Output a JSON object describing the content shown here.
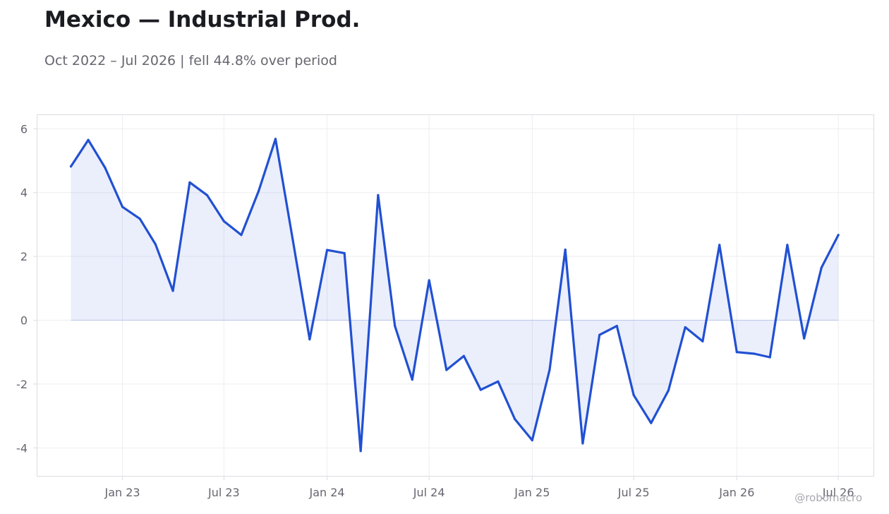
{
  "header": {
    "title": "Mexico — Industrial Prod.",
    "subtitle": "Oct 2022 – Jul 2026 | fell 44.8% over period"
  },
  "credit": "@robomacro",
  "colors": {
    "line": "#2150d2",
    "fill": "#2150d2",
    "grid": "#eeeef2",
    "frame": "#dcdce2",
    "text": "#666670"
  },
  "chart_data": {
    "type": "area",
    "title": "Mexico — Industrial Prod.",
    "subtitle": "Oct 2022 – Jul 2026 | fell 44.8% over period",
    "xlabel": "",
    "ylabel": "",
    "x": [
      "2022-10",
      "2022-11",
      "2022-12",
      "2023-01",
      "2023-02",
      "2023-03",
      "2023-04",
      "2023-05",
      "2023-06",
      "2023-07",
      "2023-08",
      "2023-09",
      "2023-10",
      "2023-11",
      "2023-12",
      "2024-01",
      "2024-02",
      "2024-03",
      "2024-04",
      "2024-05",
      "2024-06",
      "2024-07",
      "2024-08",
      "2024-09",
      "2024-10",
      "2024-11",
      "2024-12",
      "2025-01",
      "2025-02",
      "2025-03",
      "2025-04",
      "2025-05",
      "2025-06",
      "2025-07",
      "2025-08",
      "2025-09",
      "2025-10",
      "2025-11",
      "2025-12",
      "2026-01",
      "2026-02",
      "2026-03",
      "2026-04",
      "2026-05",
      "2026-06",
      "2026-07"
    ],
    "series": [
      {
        "values": [
          4.82,
          5.65,
          4.78,
          3.55,
          3.18,
          2.38,
          0.92,
          4.32,
          3.92,
          3.1,
          2.67,
          4.05,
          5.68,
          2.5,
          -0.6,
          2.2,
          2.1,
          -4.1,
          3.92,
          -0.18,
          -1.86,
          1.25,
          -1.56,
          -1.12,
          -2.18,
          -1.92,
          -3.1,
          -3.76,
          -1.55,
          2.21,
          -3.86,
          -0.46,
          -0.18,
          -2.35,
          -3.22,
          -2.2,
          -0.22,
          -0.66,
          2.36,
          -1.0,
          -1.05,
          -1.16,
          2.36,
          -0.57,
          1.65,
          2.67
        ]
      }
    ],
    "xticks": [
      {
        "label": "Jan 23",
        "x": "2023-01"
      },
      {
        "label": "Jul 23",
        "x": "2023-07"
      },
      {
        "label": "Jan 24",
        "x": "2024-01"
      },
      {
        "label": "Jul 24",
        "x": "2024-07"
      },
      {
        "label": "Jan 25",
        "x": "2025-01"
      },
      {
        "label": "Jul 25",
        "x": "2025-07"
      },
      {
        "label": "Jan 26",
        "x": "2026-01"
      },
      {
        "label": "Jul 26",
        "x": "2026-07"
      }
    ],
    "yticks": [
      {
        "label": "6",
        "value": 6
      },
      {
        "label": "4",
        "value": 4
      },
      {
        "label": "2",
        "value": 2
      },
      {
        "label": "0",
        "value": 0
      },
      {
        "label": "-2",
        "value": -2
      },
      {
        "label": "-4",
        "value": -4
      }
    ],
    "ylim": [
      -4.9,
      6.45
    ],
    "xlim": [
      "2022-08-01",
      "2026-09-03"
    ],
    "grid": true,
    "legend": "none"
  }
}
